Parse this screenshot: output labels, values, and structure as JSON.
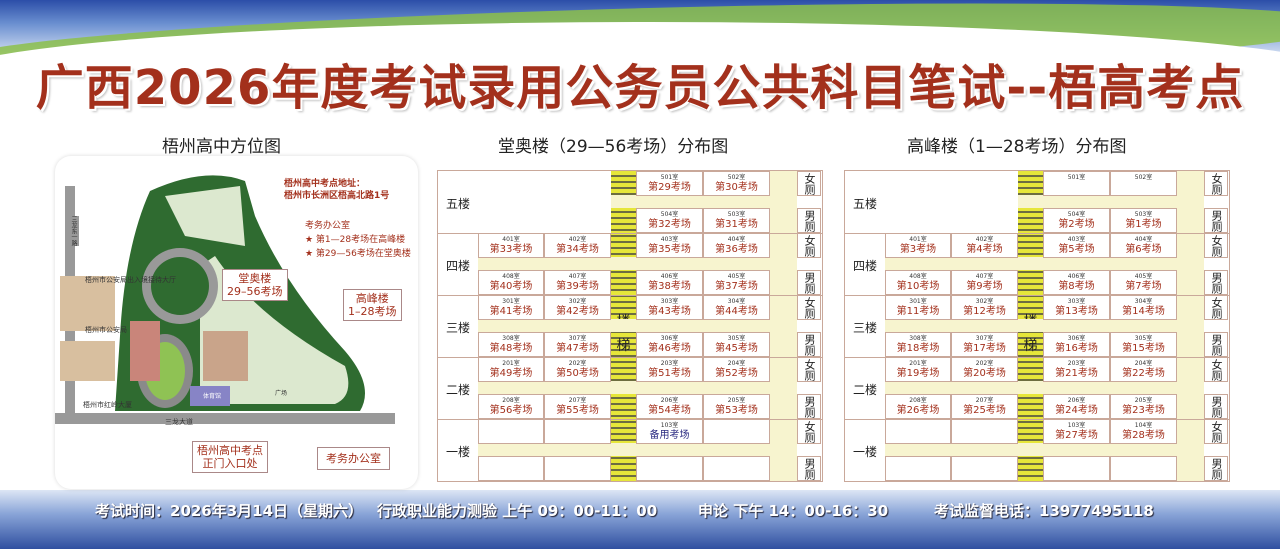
{
  "title": "广西2026年度考试录用公务员公共科目笔试--梧高考点",
  "map": {
    "heading": "梧州高中方位图",
    "address_label": "梧州高中考点地址：",
    "address": "梧州市长洲区梧高北路1号",
    "legend": [
      "考务办公室",
      "★ 第1—28考场在高峰楼",
      "★ 第29—56考场在堂奥楼"
    ],
    "places": {
      "police_entry": "梧州市公安局出入境接待大厅",
      "police": "梧州市公安局",
      "hongling": "梧州市红岭大厦",
      "road_bottom": "三龙大道",
      "road_left": "三龙东一路",
      "gym": "体育馆",
      "plaza": "广场"
    },
    "callouts": {
      "tangao": [
        "堂奥楼",
        "29–56考场"
      ],
      "gaofeng": [
        "高峰楼",
        "1–28考场"
      ],
      "gate": [
        "梧州高中考点",
        "正门入口处"
      ],
      "office": "考务办公室"
    }
  },
  "tables": [
    {
      "heading": "堂奥楼（29—56考场）分布图",
      "stair": [
        "楼",
        "梯"
      ],
      "floors": [
        {
          "label": "五楼",
          "top": [
            null,
            null,
            {
              "room": "501室",
              "name": "第29考场"
            },
            {
              "room": "502室",
              "name": "第30考场"
            }
          ],
          "bottom": [
            null,
            null,
            {
              "room": "504室",
              "name": "第32考场"
            },
            {
              "room": "503室",
              "name": "第31考场"
            }
          ],
          "toilets": [
            "女厕",
            "男厕"
          ]
        },
        {
          "label": "四楼",
          "top": [
            {
              "room": "401室",
              "name": "第33考场"
            },
            {
              "room": "402室",
              "name": "第34考场"
            },
            {
              "room": "403室",
              "name": "第35考场"
            },
            {
              "room": "404室",
              "name": "第36考场"
            }
          ],
          "bottom": [
            {
              "room": "408室",
              "name": "第40考场"
            },
            {
              "room": "407室",
              "name": "第39考场"
            },
            {
              "room": "406室",
              "name": "第38考场"
            },
            {
              "room": "405室",
              "name": "第37考场"
            }
          ],
          "toilets": [
            "女厕",
            "男厕"
          ]
        },
        {
          "label": "三楼",
          "top": [
            {
              "room": "301室",
              "name": "第41考场"
            },
            {
              "room": "302室",
              "name": "第42考场"
            },
            {
              "room": "303室",
              "name": "第43考场"
            },
            {
              "room": "304室",
              "name": "第44考场"
            }
          ],
          "bottom": [
            {
              "room": "308室",
              "name": "第48考场"
            },
            {
              "room": "307室",
              "name": "第47考场"
            },
            {
              "room": "306室",
              "name": "第46考场"
            },
            {
              "room": "305室",
              "name": "第45考场"
            }
          ],
          "toilets": [
            "女厕",
            "男厕"
          ]
        },
        {
          "label": "二楼",
          "top": [
            {
              "room": "201室",
              "name": "第49考场"
            },
            {
              "room": "202室",
              "name": "第50考场"
            },
            {
              "room": "203室",
              "name": "第51考场"
            },
            {
              "room": "204室",
              "name": "第52考场"
            }
          ],
          "bottom": [
            {
              "room": "208室",
              "name": "第56考场"
            },
            {
              "room": "207室",
              "name": "第55考场"
            },
            {
              "room": "206室",
              "name": "第54考场"
            },
            {
              "room": "205室",
              "name": "第53考场"
            }
          ],
          "toilets": [
            "女厕",
            "男厕"
          ]
        },
        {
          "label": "一楼",
          "top": [
            {},
            {},
            {
              "room": "103室",
              "name": "备用考场",
              "alt": true
            },
            {}
          ],
          "bottom": [
            {},
            {},
            {},
            {}
          ],
          "toilets": [
            "女厕",
            "男厕"
          ]
        }
      ]
    },
    {
      "heading": "高峰楼（1—28考场）分布图",
      "stair": [
        "楼",
        "梯"
      ],
      "floors": [
        {
          "label": "五楼",
          "top": [
            null,
            null,
            {
              "room": "501室",
              "name": ""
            },
            {
              "room": "502室",
              "name": ""
            }
          ],
          "bottom": [
            null,
            null,
            {
              "room": "504室",
              "name": "第2考场"
            },
            {
              "room": "503室",
              "name": "第1考场"
            }
          ],
          "toilets": [
            "女厕",
            "男厕"
          ]
        },
        {
          "label": "四楼",
          "top": [
            {
              "room": "401室",
              "name": "第3考场"
            },
            {
              "room": "402室",
              "name": "第4考场"
            },
            {
              "room": "403室",
              "name": "第5考场"
            },
            {
              "room": "404室",
              "name": "第6考场"
            }
          ],
          "bottom": [
            {
              "room": "408室",
              "name": "第10考场"
            },
            {
              "room": "407室",
              "name": "第9考场"
            },
            {
              "room": "406室",
              "name": "第8考场"
            },
            {
              "room": "405室",
              "name": "第7考场"
            }
          ],
          "toilets": [
            "女厕",
            "男厕"
          ]
        },
        {
          "label": "三楼",
          "top": [
            {
              "room": "301室",
              "name": "第11考场"
            },
            {
              "room": "302室",
              "name": "第12考场"
            },
            {
              "room": "303室",
              "name": "第13考场"
            },
            {
              "room": "304室",
              "name": "第14考场"
            }
          ],
          "bottom": [
            {
              "room": "308室",
              "name": "第18考场"
            },
            {
              "room": "307室",
              "name": "第17考场"
            },
            {
              "room": "306室",
              "name": "第16考场"
            },
            {
              "room": "305室",
              "name": "第15考场"
            }
          ],
          "toilets": [
            "女厕",
            "男厕"
          ]
        },
        {
          "label": "二楼",
          "top": [
            {
              "room": "201室",
              "name": "第19考场"
            },
            {
              "room": "202室",
              "name": "第20考场"
            },
            {
              "room": "203室",
              "name": "第21考场"
            },
            {
              "room": "204室",
              "name": "第22考场"
            }
          ],
          "bottom": [
            {
              "room": "208室",
              "name": "第26考场"
            },
            {
              "room": "207室",
              "name": "第25考场"
            },
            {
              "room": "206室",
              "name": "第24考场"
            },
            {
              "room": "205室",
              "name": "第23考场"
            }
          ],
          "toilets": [
            "女厕",
            "男厕"
          ]
        },
        {
          "label": "一楼",
          "top": [
            {},
            {},
            {
              "room": "103室",
              "name": "第27考场"
            },
            {
              "room": "104室",
              "name": "第28考场"
            }
          ],
          "bottom": [
            {},
            {},
            {},
            {}
          ],
          "toilets": [
            "女厕",
            "男厕"
          ]
        }
      ]
    }
  ],
  "footer": {
    "time": "考试时间：2026年3月14日（星期六）",
    "subject1": "行政职业能力测验 上午 09：00-11：00",
    "subject2": "申论 下午 14：00-16：30",
    "phone": "考试监督电话：13977495118"
  }
}
